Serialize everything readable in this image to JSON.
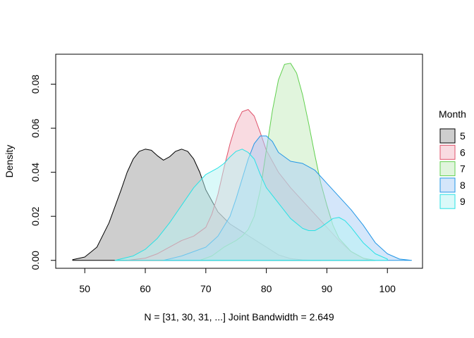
{
  "chart_data": {
    "type": "area",
    "title": "",
    "xlabel": "N = [31, 30, 31, ...]   Joint Bandwidth = 2.649",
    "ylabel": "Density",
    "xlim": [
      45.2,
      105.8
    ],
    "ylim": [
      -0.0036,
      0.0936
    ],
    "xticks": [
      50,
      60,
      70,
      80,
      90,
      100
    ],
    "yticks": [
      0.0,
      0.02,
      0.04,
      0.06,
      0.08
    ],
    "ytick_labels": [
      "0.00",
      "0.02",
      "0.04",
      "0.06",
      "0.08"
    ],
    "grid": false,
    "legend": {
      "title": "Month",
      "placement": "right"
    },
    "series": [
      {
        "name": "5",
        "stroke": "#000000",
        "fill": "#9e9e9e",
        "x": [
          48,
          50,
          52,
          54,
          56,
          57,
          58,
          59,
          60,
          61,
          62,
          63,
          64,
          65,
          66,
          67,
          68,
          69,
          70,
          72,
          74,
          76,
          78,
          80,
          82,
          84,
          86,
          88,
          89
        ],
        "y": [
          0.0003,
          0.0015,
          0.006,
          0.017,
          0.032,
          0.04,
          0.046,
          0.0495,
          0.0505,
          0.05,
          0.0475,
          0.0455,
          0.047,
          0.0495,
          0.0505,
          0.0495,
          0.046,
          0.04,
          0.032,
          0.022,
          0.0165,
          0.013,
          0.0095,
          0.006,
          0.0025,
          0.0008,
          0.0002,
          0.0,
          0.0
        ]
      },
      {
        "name": "6",
        "stroke": "#df536b",
        "fill": "#f3b8c4",
        "x": [
          57,
          60,
          62,
          64,
          66,
          68,
          70,
          71,
          72,
          73,
          74,
          75,
          76,
          77,
          78,
          79,
          80,
          82,
          84,
          86,
          88,
          90,
          92,
          94,
          96,
          97
        ],
        "y": [
          0.0,
          0.001,
          0.003,
          0.006,
          0.009,
          0.011,
          0.015,
          0.021,
          0.03,
          0.042,
          0.053,
          0.062,
          0.0675,
          0.0685,
          0.0655,
          0.058,
          0.05,
          0.04,
          0.033,
          0.027,
          0.021,
          0.015,
          0.009,
          0.004,
          0.001,
          0.0
        ]
      },
      {
        "name": "7",
        "stroke": "#61d04f",
        "fill": "#c3ecbb",
        "x": [
          69,
          71,
          73,
          75,
          76,
          77,
          78,
          79,
          80,
          81,
          82,
          83,
          84,
          85,
          86,
          87,
          88,
          89,
          90,
          91,
          92,
          94,
          96,
          98
        ],
        "y": [
          0.0,
          0.002,
          0.006,
          0.009,
          0.011,
          0.014,
          0.02,
          0.032,
          0.05,
          0.068,
          0.082,
          0.089,
          0.0895,
          0.085,
          0.075,
          0.062,
          0.048,
          0.035,
          0.025,
          0.016,
          0.01,
          0.004,
          0.001,
          0.0
        ]
      },
      {
        "name": "8",
        "stroke": "#2297e6",
        "fill": "#aacdf5",
        "x": [
          63,
          66,
          68,
          70,
          72,
          74,
          75,
          76,
          77,
          78,
          79,
          80,
          81,
          82,
          84,
          86,
          88,
          90,
          92,
          94,
          96,
          98,
          100,
          102,
          104
        ],
        "y": [
          0.0,
          0.002,
          0.004,
          0.006,
          0.011,
          0.02,
          0.028,
          0.037,
          0.046,
          0.053,
          0.0565,
          0.0565,
          0.054,
          0.049,
          0.045,
          0.044,
          0.041,
          0.035,
          0.029,
          0.023,
          0.016,
          0.008,
          0.003,
          0.0006,
          0.0
        ]
      },
      {
        "name": "9",
        "stroke": "#28e2e5",
        "fill": "#b6f3f4",
        "x": [
          55,
          58,
          60,
          62,
          64,
          66,
          68,
          70,
          72,
          73,
          74,
          75,
          76,
          77,
          78,
          79,
          80,
          82,
          84,
          86,
          87,
          88,
          89,
          90,
          91,
          92,
          93,
          94,
          96,
          98,
          100
        ],
        "y": [
          0.0,
          0.002,
          0.005,
          0.01,
          0.017,
          0.025,
          0.033,
          0.039,
          0.042,
          0.044,
          0.047,
          0.0495,
          0.0505,
          0.049,
          0.046,
          0.039,
          0.033,
          0.026,
          0.019,
          0.0145,
          0.0135,
          0.0135,
          0.015,
          0.017,
          0.019,
          0.0195,
          0.018,
          0.015,
          0.008,
          0.003,
          0.0006
        ]
      }
    ]
  }
}
